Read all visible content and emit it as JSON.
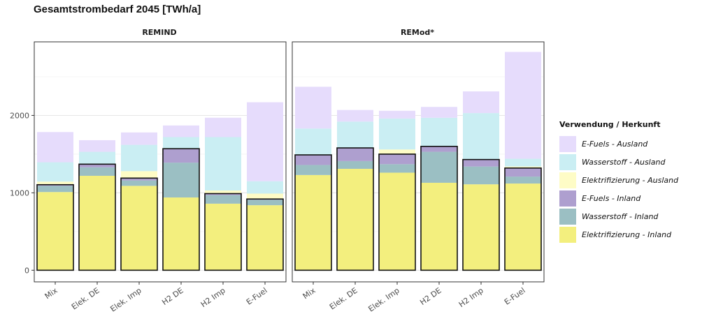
{
  "title": "Gesamtstrombedarf 2045 [TWh/a]",
  "colors": {
    "E-Fuels - Ausland": "#e6dcfc",
    "Wasserstoff - Ausland": "#caeef3",
    "Elektrifizierung - Ausland": "#fefcc6",
    "E-Fuels - Inland": "#ae9fcf",
    "Wasserstoff - Inland": "#9bbfc3",
    "Elektrifizierung - Inland": "#f3ef7e"
  },
  "legend": {
    "title": "Verwendung / Herkunft",
    "items": [
      "E-Fuels - Ausland",
      "Wasserstoff - Ausland",
      "Elektrifizierung - Ausland",
      "E-Fuels - Inland",
      "Wasserstoff - Inland",
      "Elektrifizierung - Inland"
    ]
  },
  "chart_data": {
    "type": "bar",
    "stacked": true,
    "title": "Gesamtstrombedarf 2045 [TWh/a]",
    "categories": [
      "Mix",
      "Elek. DE",
      "Elek. Imp",
      "H2 DE",
      "H2 Imp",
      "E-Fuel"
    ],
    "y_ticks": [
      0,
      1000,
      2000
    ],
    "ylim": [
      -150,
      2950
    ],
    "grid": true,
    "legend_position": "right",
    "panels": [
      {
        "name": "REMIND",
        "series": [
          {
            "name": "Elektrifizierung - Inland",
            "values": [
              1010,
              1220,
              1090,
              940,
              860,
              840
            ]
          },
          {
            "name": "Wasserstoff - Inland",
            "values": [
              80,
              110,
              70,
              450,
              110,
              70
            ]
          },
          {
            "name": "E-Fuels - Inland",
            "values": [
              15,
              40,
              30,
              180,
              20,
              10
            ]
          },
          {
            "name": "Elektrifizierung - Ausland",
            "values": [
              40,
              0,
              90,
              0,
              40,
              70
            ]
          },
          {
            "name": "Wasserstoff - Ausland",
            "values": [
              250,
              160,
              340,
              150,
              690,
              160
            ]
          },
          {
            "name": "E-Fuels - Ausland",
            "values": [
              390,
              150,
              160,
              150,
              250,
              1020
            ]
          }
        ]
      },
      {
        "name": "REMod*",
        "series": [
          {
            "name": "Elektrifizierung - Inland",
            "values": [
              1230,
              1310,
              1260,
              1130,
              1110,
              1120
            ]
          },
          {
            "name": "Wasserstoff - Inland",
            "values": [
              130,
              100,
              110,
              400,
              230,
              90
            ]
          },
          {
            "name": "E-Fuels - Inland",
            "values": [
              130,
              170,
              130,
              70,
              90,
              110
            ]
          },
          {
            "name": "Elektrifizierung - Ausland",
            "values": [
              0,
              0,
              60,
              0,
              0,
              20
            ]
          },
          {
            "name": "Wasserstoff - Ausland",
            "values": [
              340,
              340,
              400,
              370,
              600,
              100
            ]
          },
          {
            "name": "E-Fuels - Ausland",
            "values": [
              540,
              150,
              100,
              140,
              280,
              1380
            ]
          }
        ]
      }
    ]
  }
}
